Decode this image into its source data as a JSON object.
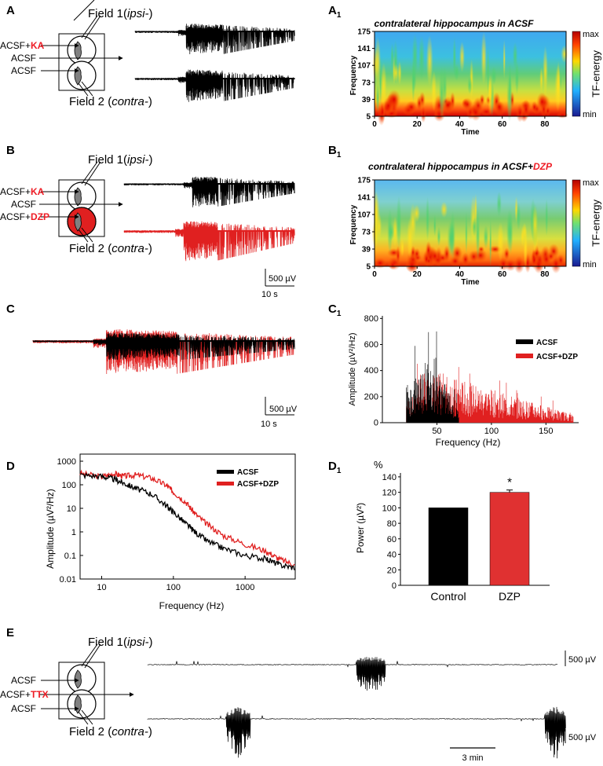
{
  "figure": {
    "panel_labels": {
      "A": "A",
      "A1": "A",
      "A1_sub": "1",
      "B": "B",
      "B1": "B",
      "B1_sub": "1",
      "C": "C",
      "C1": "C",
      "C1_sub": "1",
      "D": "D",
      "D1": "D",
      "D1_sub": "1",
      "E": "E"
    },
    "schematic": {
      "field1_prefix": "Field 1(",
      "field1_italic": "ipsi-",
      "field1_suffix": ")",
      "field2_prefix": "Field 2 (",
      "field2_italic": "contra-",
      "field2_suffix": ")",
      "acsf": "ACSF",
      "acsf_plus": "ACSF+",
      "ka": "KA",
      "dzp": "DZP",
      "ttx": "TTX"
    },
    "scalebars": {
      "voltage": "500 µV",
      "time_s": "10 s",
      "time_min": "3 min"
    },
    "colors": {
      "black": "#000000",
      "red": "#e02020",
      "accent_text": "#ee1c25"
    }
  },
  "chart_data": [
    {
      "id": "A1",
      "type": "heatmap",
      "title": "contralateral hippocampus in ACSF",
      "xlabel": "Time",
      "ylabel": "Frequency",
      "xticks": [
        "0",
        "20",
        "40",
        "60",
        "80"
      ],
      "yticks": [
        "5",
        "39",
        "73",
        "107",
        "141",
        "175"
      ],
      "xlim": [
        0,
        90
      ],
      "ylim": [
        5,
        175
      ],
      "colorbar": {
        "label": "TF-energy",
        "max": "max",
        "min": "min"
      }
    },
    {
      "id": "B1",
      "type": "heatmap",
      "title_prefix": "contralateral hippocampus in ACSF+",
      "title_suffix": "DZP",
      "xlabel": "Time",
      "ylabel": "Frequency",
      "xticks": [
        "0",
        "20",
        "40",
        "60",
        "80"
      ],
      "yticks": [
        "5",
        "39",
        "73",
        "107",
        "141",
        "175"
      ],
      "xlim": [
        0,
        90
      ],
      "ylim": [
        5,
        175
      ],
      "colorbar": {
        "label": "TF-energy",
        "max": "max",
        "min": "min"
      }
    },
    {
      "id": "C1",
      "type": "bar",
      "xlabel": "Frequency (Hz)",
      "ylabel": "Amplitude (µV²/Hz)",
      "xticks": [
        "50",
        "100",
        "150"
      ],
      "yticks": [
        "0",
        "200",
        "400",
        "600",
        "800"
      ],
      "xlim": [
        0,
        180
      ],
      "ylim": [
        0,
        820
      ],
      "legend": [
        "ACSF",
        "ACSF+DZP"
      ],
      "series": [
        {
          "name": "ACSF",
          "color": "#000000",
          "range": [
            22,
            70
          ],
          "peak": 700
        },
        {
          "name": "ACSF+DZP",
          "color": "#e02020",
          "range": [
            22,
            175
          ],
          "peak": 720
        }
      ]
    },
    {
      "id": "D",
      "type": "line",
      "log_x": true,
      "log_y": true,
      "xlabel": "Frequency (Hz)",
      "ylabel": "Amplitude (µV²/Hz)",
      "xticks": [
        "10",
        "100",
        "1000"
      ],
      "yticks": [
        "0.01",
        "0.1",
        "1",
        "10",
        "100",
        "1000"
      ],
      "xlim": [
        5,
        5000
      ],
      "ylim": [
        0.01,
        2000
      ],
      "legend": [
        "ACSF",
        "ACSF+DZP"
      ],
      "series": [
        {
          "name": "ACSF",
          "color": "#000000",
          "points": [
            [
              5,
              260
            ],
            [
              10,
              230
            ],
            [
              15,
              170
            ],
            [
              20,
              120
            ],
            [
              30,
              70
            ],
            [
              50,
              40
            ],
            [
              80,
              13
            ],
            [
              100,
              7
            ],
            [
              150,
              2.2
            ],
            [
              200,
              1
            ],
            [
              300,
              0.4
            ],
            [
              500,
              0.2
            ],
            [
              1000,
              0.1
            ],
            [
              2000,
              0.07
            ],
            [
              3000,
              0.04
            ],
            [
              5000,
              0.03
            ]
          ]
        },
        {
          "name": "ACSF+DZP",
          "color": "#e02020",
          "points": [
            [
              5,
              300
            ],
            [
              10,
              220
            ],
            [
              15,
              300
            ],
            [
              20,
              230
            ],
            [
              30,
              260
            ],
            [
              50,
              190
            ],
            [
              80,
              95
            ],
            [
              100,
              50
            ],
            [
              150,
              18
            ],
            [
              200,
              6
            ],
            [
              300,
              2
            ],
            [
              500,
              0.7
            ],
            [
              1000,
              0.3
            ],
            [
              2000,
              0.15
            ],
            [
              3000,
              0.07
            ],
            [
              5000,
              0.04
            ]
          ]
        }
      ]
    },
    {
      "id": "D1",
      "type": "bar",
      "ylabel_unit": "%",
      "ylabel": "Power (µV²)",
      "categories": [
        "Control",
        "DZP"
      ],
      "values": [
        100,
        120
      ],
      "error": [
        0,
        3
      ],
      "colors": [
        "#000000",
        "#e03131"
      ],
      "yticks": [
        "0",
        "20",
        "40",
        "60",
        "80",
        "100",
        "120",
        "140"
      ],
      "ylim": [
        0,
        145
      ],
      "significance": "*"
    }
  ]
}
